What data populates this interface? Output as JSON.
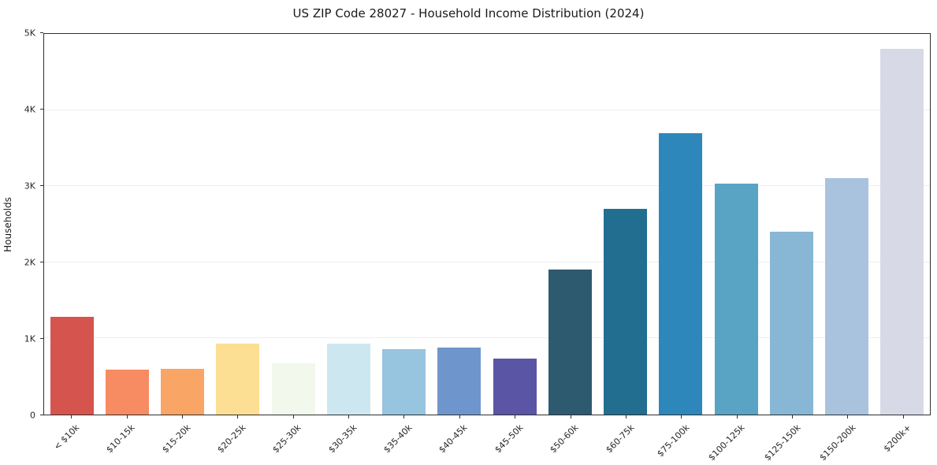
{
  "chart_data": {
    "type": "bar",
    "title": "US ZIP Code 28027 - Household Income Distribution (2024)",
    "xlabel": "",
    "ylabel": "Households",
    "ylim": [
      0,
      5000
    ],
    "grid": true,
    "legend": false,
    "background_color": "#ffffff",
    "categories": [
      "< $10k",
      "$10-15k",
      "$15-20k",
      "$20-25k",
      "$25-30k",
      "$30-35k",
      "$35-40k",
      "$40-45k",
      "$45-50k",
      "$50-60k",
      "$60-75k",
      "$75-100k",
      "$100-125k",
      "$125-150k",
      "$150-200k",
      "$200k+"
    ],
    "values": [
      1280,
      590,
      600,
      930,
      670,
      930,
      860,
      880,
      730,
      1900,
      2700,
      3700,
      3030,
      2400,
      3110,
      4800
    ],
    "bar_colors": [
      "#d6544e",
      "#f78b62",
      "#f9a566",
      "#fcdf92",
      "#f2f8ec",
      "#cde7f0",
      "#97c4de",
      "#6f96cc",
      "#5a55a5",
      "#2e5a70",
      "#226e90",
      "#2d87bb",
      "#59a3c4",
      "#88b6d5",
      "#a9c3de",
      "#d8d9e7"
    ],
    "yticks": [
      {
        "value": 0,
        "label": "0"
      },
      {
        "value": 1000,
        "label": "1K"
      },
      {
        "value": 2000,
        "label": "2K"
      },
      {
        "value": 3000,
        "label": "3K"
      },
      {
        "value": 4000,
        "label": "4K"
      },
      {
        "value": 5000,
        "label": "5K"
      }
    ]
  }
}
